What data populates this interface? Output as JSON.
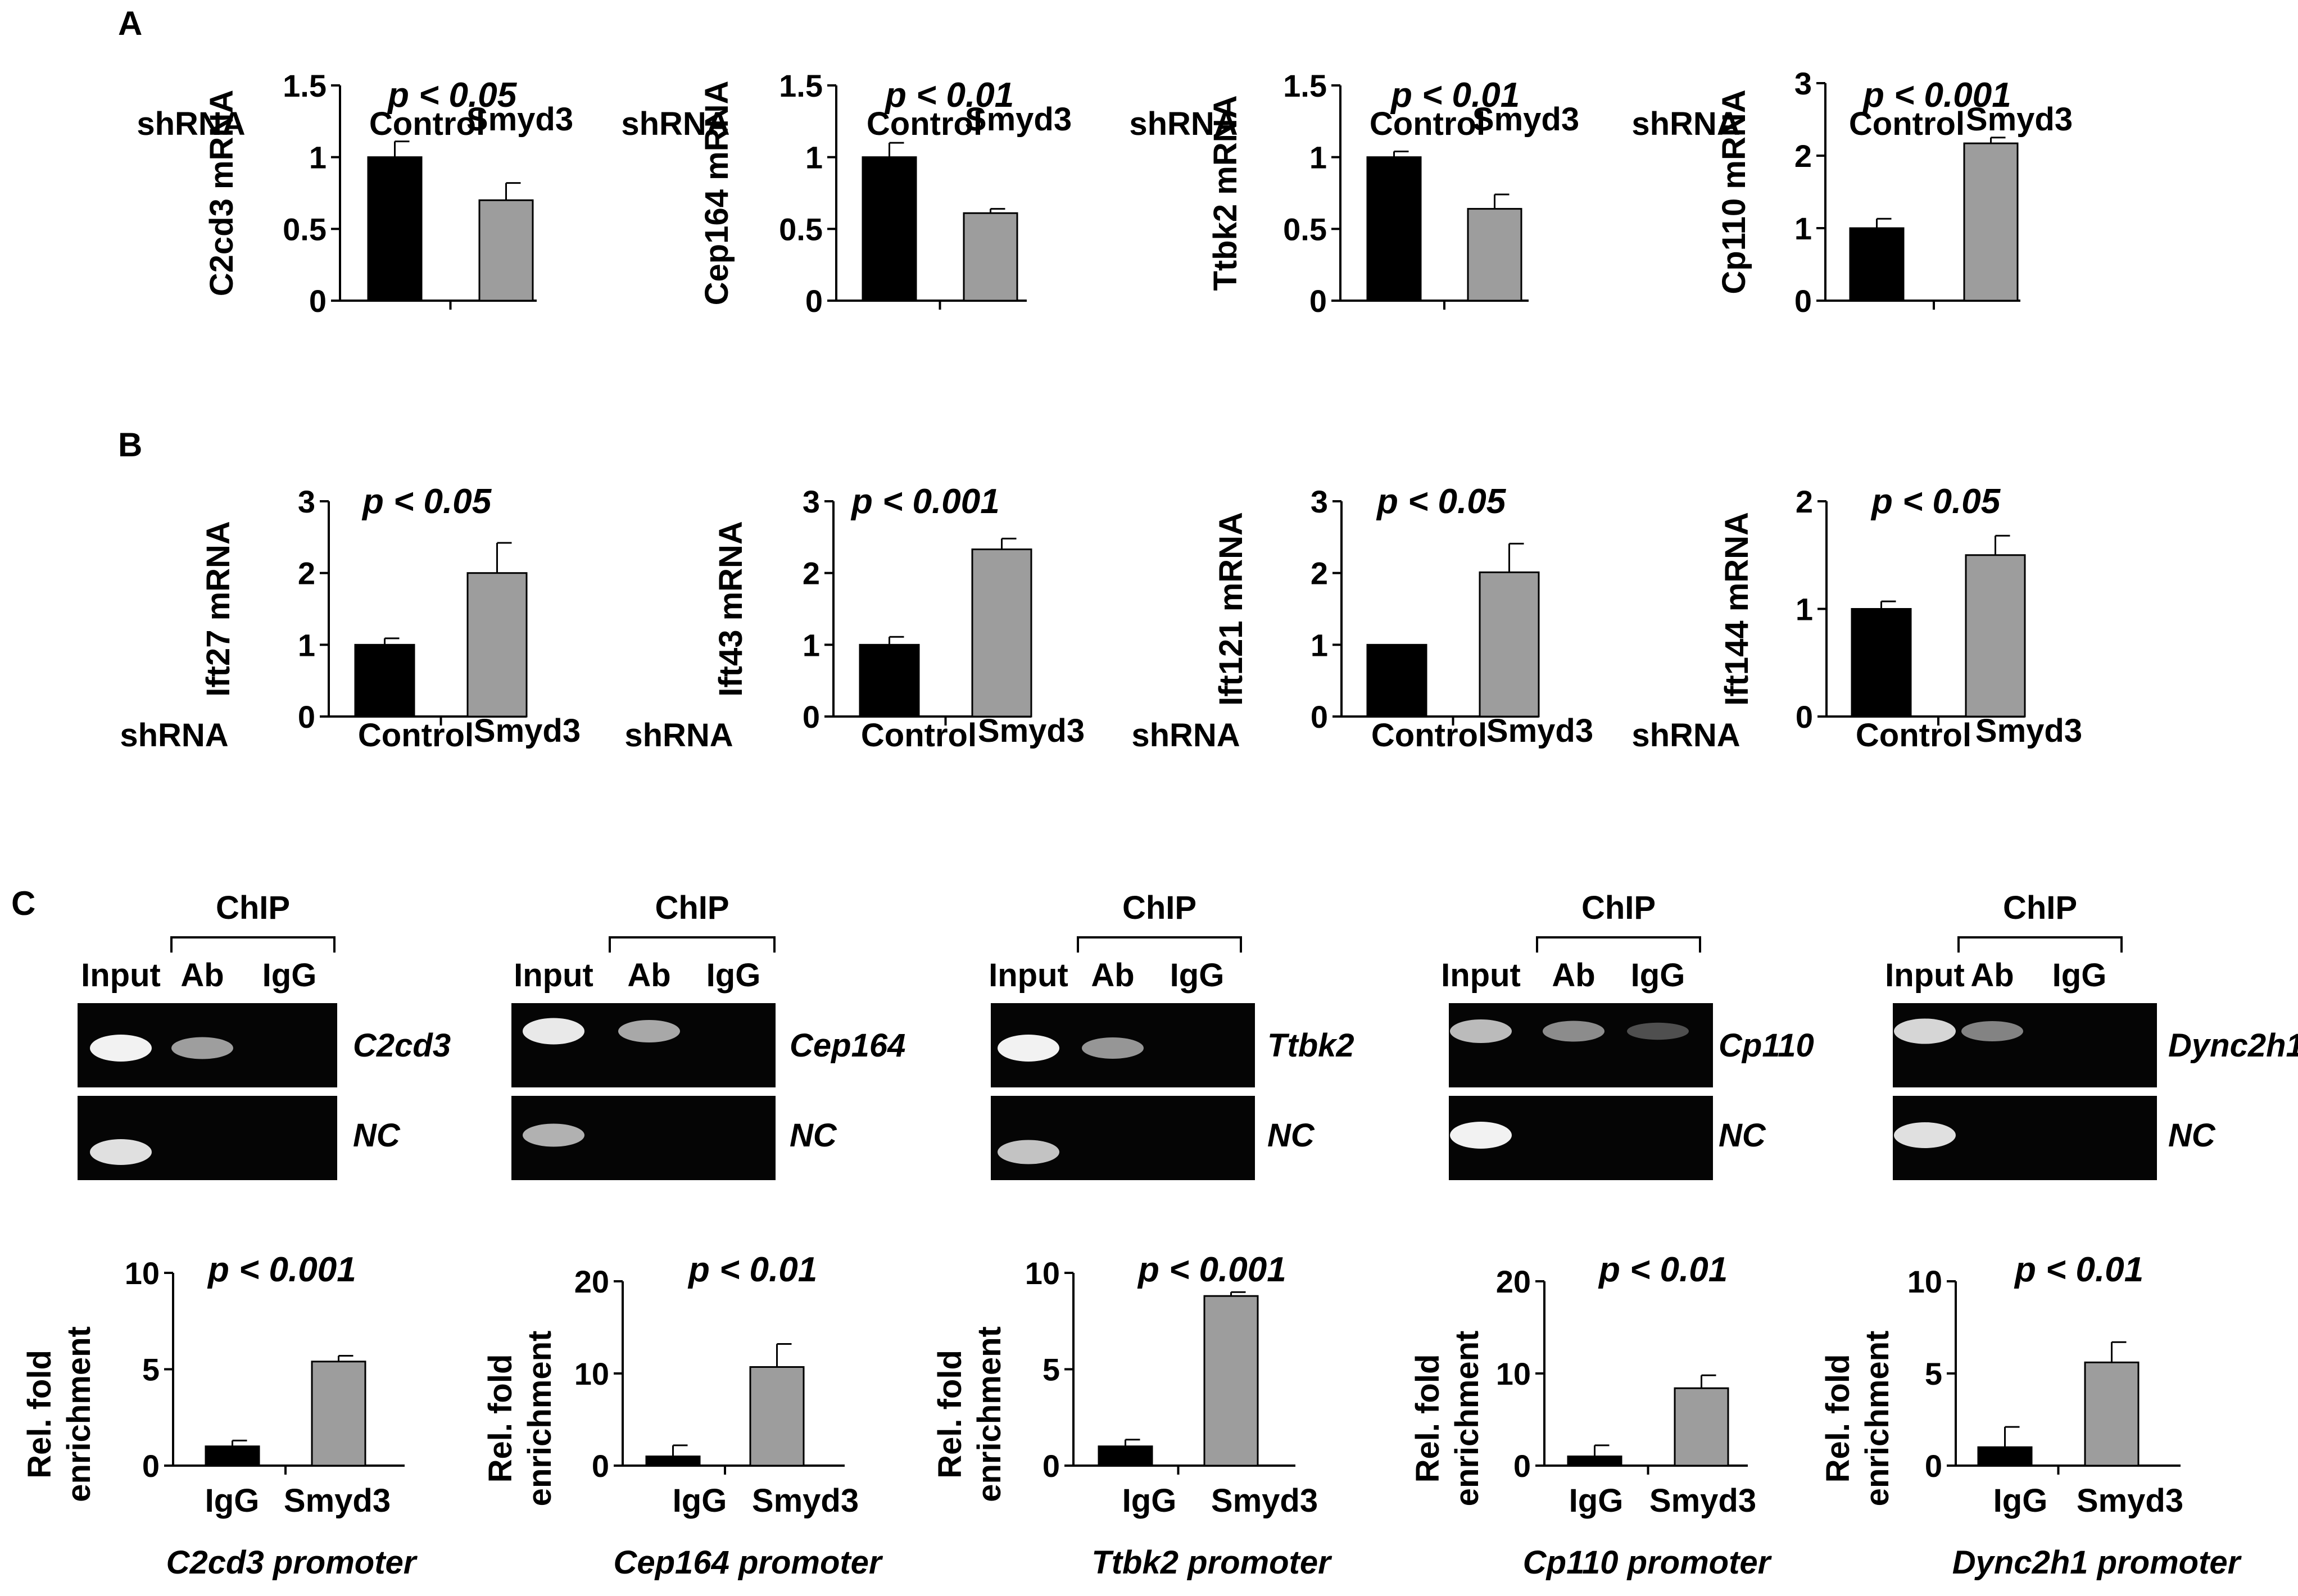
{
  "panels": {
    "A": "A",
    "B": "B",
    "C": "C"
  },
  "shrna_label": "shRNA",
  "chart_data": [
    {
      "id": "a1",
      "type": "bar",
      "panel": "A",
      "categories": [
        "Control",
        "Smyd3"
      ],
      "values": [
        1.0,
        0.7
      ],
      "errors": [
        0.11,
        0.12
      ],
      "colors": [
        "#000000",
        "#9d9d9d"
      ],
      "ylabel": "C2cd3 mRNA",
      "ylim": [
        0,
        1.5
      ],
      "yticks": [
        0,
        0.5,
        1,
        1.5
      ],
      "ytick_labels": [
        "0",
        "0.5",
        "1",
        "1.5"
      ],
      "annotation": "p < 0.05"
    },
    {
      "id": "a2",
      "type": "bar",
      "panel": "A",
      "categories": [
        "Control",
        "Smyd3"
      ],
      "values": [
        1.0,
        0.61
      ],
      "errors": [
        0.1,
        0.03
      ],
      "colors": [
        "#000000",
        "#9d9d9d"
      ],
      "ylabel": "Cep164 mRNA",
      "ylim": [
        0,
        1.5
      ],
      "yticks": [
        0,
        0.5,
        1,
        1.5
      ],
      "ytick_labels": [
        "0",
        "0.5",
        "1",
        "1.5"
      ],
      "annotation": "p < 0.01"
    },
    {
      "id": "a3",
      "type": "bar",
      "panel": "A",
      "categories": [
        "Control",
        "Smyd3"
      ],
      "values": [
        1.0,
        0.64
      ],
      "errors": [
        0.04,
        0.1
      ],
      "colors": [
        "#000000",
        "#9d9d9d"
      ],
      "ylabel": "Ttbk2 mRNA",
      "ylim": [
        0,
        1.5
      ],
      "yticks": [
        0,
        0.5,
        1,
        1.5
      ],
      "ytick_labels": [
        "0",
        "0.5",
        "1",
        "1.5"
      ],
      "annotation": "p < 0.01"
    },
    {
      "id": "a4",
      "type": "bar",
      "panel": "A",
      "categories": [
        "Control",
        "Smyd3"
      ],
      "values": [
        1.0,
        2.17
      ],
      "errors": [
        0.13,
        0.08
      ],
      "colors": [
        "#000000",
        "#9d9d9d"
      ],
      "ylabel": "Cp110 mRNA",
      "ylim": [
        0,
        3
      ],
      "yticks": [
        0,
        1,
        2,
        3
      ],
      "ytick_labels": [
        "0",
        "1",
        "2",
        "3"
      ],
      "annotation": "p < 0.001"
    },
    {
      "id": "b1",
      "type": "bar",
      "panel": "B",
      "categories": [
        "Control",
        "Smyd3"
      ],
      "values": [
        1.0,
        2.0
      ],
      "errors": [
        0.09,
        0.42
      ],
      "colors": [
        "#000000",
        "#9d9d9d"
      ],
      "ylabel": "Ift27 mRNA",
      "ylim": [
        0,
        3
      ],
      "yticks": [
        0,
        1,
        2,
        3
      ],
      "ytick_labels": [
        "0",
        "1",
        "2",
        "3"
      ],
      "annotation": "p < 0.05"
    },
    {
      "id": "b2",
      "type": "bar",
      "panel": "B",
      "categories": [
        "Control",
        "Smyd3"
      ],
      "values": [
        1.0,
        2.33
      ],
      "errors": [
        0.11,
        0.15
      ],
      "colors": [
        "#000000",
        "#9d9d9d"
      ],
      "ylabel": "Ift43 mRNA",
      "ylim": [
        0,
        3
      ],
      "yticks": [
        0,
        1,
        2,
        3
      ],
      "ytick_labels": [
        "0",
        "1",
        "2",
        "3"
      ],
      "annotation": "p < 0.001"
    },
    {
      "id": "b3",
      "type": "bar",
      "panel": "B",
      "categories": [
        "Control",
        "Smyd3"
      ],
      "values": [
        1.0,
        2.01
      ],
      "errors": [
        0.0,
        0.4
      ],
      "colors": [
        "#000000",
        "#9d9d9d"
      ],
      "ylabel": "Ift121 mRNA",
      "ylim": [
        0,
        3
      ],
      "yticks": [
        0,
        1,
        2,
        3
      ],
      "ytick_labels": [
        "0",
        "1",
        "2",
        "3"
      ],
      "annotation": "p < 0.05"
    },
    {
      "id": "b4",
      "type": "bar",
      "panel": "B",
      "categories": [
        "Control",
        "Smyd3"
      ],
      "values": [
        1.0,
        1.5
      ],
      "errors": [
        0.07,
        0.18
      ],
      "colors": [
        "#000000",
        "#9d9d9d"
      ],
      "ylabel": "Ift144 mRNA",
      "ylim": [
        0,
        2
      ],
      "yticks": [
        0,
        1,
        2
      ],
      "ytick_labels": [
        "0",
        "1",
        "2"
      ],
      "annotation": "p < 0.05"
    },
    {
      "id": "c1",
      "type": "bar",
      "panel": "C",
      "categories": [
        "IgG",
        "Smyd3"
      ],
      "values": [
        1.0,
        5.4
      ],
      "errors": [
        0.3,
        0.3
      ],
      "colors": [
        "#000000",
        "#9d9d9d"
      ],
      "ylabel": "Rel. fold enrichment",
      "ylim": [
        0,
        10
      ],
      "yticks": [
        0,
        5,
        10
      ],
      "ytick_labels": [
        "0",
        "5",
        "10"
      ],
      "annotation": "p < 0.001",
      "caption": "C2cd3 promoter"
    },
    {
      "id": "c2",
      "type": "bar",
      "panel": "C",
      "categories": [
        "IgG",
        "Smyd3"
      ],
      "values": [
        1.0,
        10.7
      ],
      "errors": [
        1.2,
        2.5
      ],
      "colors": [
        "#000000",
        "#9d9d9d"
      ],
      "ylabel": "Rel. fold enrichment",
      "ylim": [
        0,
        20
      ],
      "yticks": [
        0,
        10,
        20
      ],
      "ytick_labels": [
        "0",
        "10",
        "20"
      ],
      "annotation": "p < 0.01",
      "caption": "Cep164 promoter"
    },
    {
      "id": "c3",
      "type": "bar",
      "panel": "C",
      "categories": [
        "IgG",
        "Smyd3"
      ],
      "values": [
        1.0,
        8.8
      ],
      "errors": [
        0.35,
        0.2
      ],
      "colors": [
        "#000000",
        "#9d9d9d"
      ],
      "ylabel": "Rel. fold enrichment",
      "ylim": [
        0,
        10
      ],
      "yticks": [
        0,
        5,
        10
      ],
      "ytick_labels": [
        "0",
        "5",
        "10"
      ],
      "annotation": "p < 0.001",
      "caption": "Ttbk2 promoter"
    },
    {
      "id": "c4",
      "type": "bar",
      "panel": "C",
      "categories": [
        "IgG",
        "Smyd3"
      ],
      "values": [
        1.0,
        8.4
      ],
      "errors": [
        1.2,
        1.4
      ],
      "colors": [
        "#000000",
        "#9d9d9d"
      ],
      "ylabel": "Rel. fold enrichment",
      "ylim": [
        0,
        20
      ],
      "yticks": [
        0,
        10,
        20
      ],
      "ytick_labels": [
        "0",
        "10",
        "20"
      ],
      "annotation": "p < 0.01",
      "caption": "Cp110 promoter"
    },
    {
      "id": "c5",
      "type": "bar",
      "panel": "C",
      "categories": [
        "IgG",
        "Smyd3"
      ],
      "values": [
        1.0,
        5.6
      ],
      "errors": [
        1.1,
        1.1
      ],
      "colors": [
        "#000000",
        "#9d9d9d"
      ],
      "ylabel": "Rel. fold enrichment",
      "ylim": [
        0,
        10
      ],
      "yticks": [
        0,
        5,
        10
      ],
      "ytick_labels": [
        "0",
        "5",
        "10"
      ],
      "annotation": "p < 0.01",
      "caption": "Dync2h1 promoter"
    }
  ],
  "gels": {
    "chip_label": "ChIP",
    "lane_labels": [
      "Input",
      "Ab",
      "IgG"
    ],
    "control_label": "NC",
    "items": [
      {
        "gene": "C2cd3",
        "top_bands": [
          1.0,
          0.55,
          0.0
        ],
        "nc_bands": [
          0.9,
          0.0,
          0.0
        ]
      },
      {
        "gene": "Cep164",
        "top_bands": [
          0.95,
          0.6,
          0.0
        ],
        "nc_bands": [
          0.65,
          0.0,
          0.0
        ]
      },
      {
        "gene": "Ttbk2",
        "top_bands": [
          1.0,
          0.5,
          0.0
        ],
        "nc_bands": [
          0.75,
          0.0,
          0.0
        ]
      },
      {
        "gene": "Cp110",
        "top_bands": [
          0.7,
          0.45,
          0.12
        ],
        "nc_bands": [
          1.0,
          0.0,
          0.0
        ]
      },
      {
        "gene": "Dync2h1",
        "top_bands": [
          0.85,
          0.4,
          0.0
        ],
        "nc_bands": [
          0.9,
          0.0,
          0.0
        ]
      }
    ]
  }
}
